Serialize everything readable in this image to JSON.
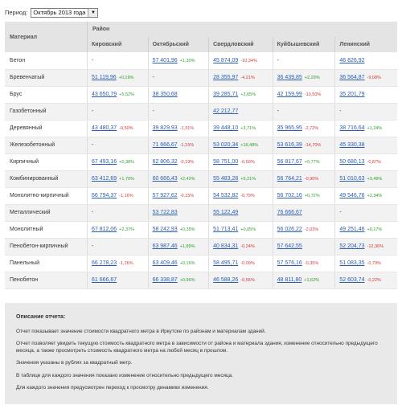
{
  "period": {
    "label": "Период:",
    "selected": "Октябрь 2013 года"
  },
  "table": {
    "material_header": "Материал",
    "district_header": "Район",
    "districts": [
      "Кировский",
      "Октябрьский",
      "Свердловский",
      "Куйбышевский",
      "Ленинский"
    ],
    "rows": [
      {
        "material": "Бетон",
        "cells": [
          {
            "value": "-",
            "change": ""
          },
          {
            "value": "57 401,96",
            "change": "+1,30%"
          },
          {
            "value": "45 874,09",
            "change": "-10,34%"
          },
          {
            "value": "-",
            "change": ""
          },
          {
            "value": "46 826,92",
            "change": ""
          }
        ]
      },
      {
        "material": "Бревенчатый",
        "cells": [
          {
            "value": "51 119,96",
            "change": "+0,19%"
          },
          {
            "value": "-",
            "change": ""
          },
          {
            "value": "28 355,97",
            "change": "-4,21%"
          },
          {
            "value": "36 439,85",
            "change": "+2,29%"
          },
          {
            "value": "36 564,87",
            "change": "-9,08%"
          }
        ]
      },
      {
        "material": "Брус",
        "cells": [
          {
            "value": "43 650,79",
            "change": "+5,52%"
          },
          {
            "value": "38 350,68",
            "change": ""
          },
          {
            "value": "39 285,71",
            "change": "+3,65%"
          },
          {
            "value": "42 159,99",
            "change": "-10,50%"
          },
          {
            "value": "35 201,79",
            "change": ""
          }
        ]
      },
      {
        "material": "Газобетонный",
        "cells": [
          {
            "value": "-",
            "change": ""
          },
          {
            "value": "-",
            "change": ""
          },
          {
            "value": "42 212,77",
            "change": ""
          },
          {
            "value": "-",
            "change": ""
          },
          {
            "value": "-",
            "change": ""
          }
        ]
      },
      {
        "material": "Деревянный",
        "cells": [
          {
            "value": "43 480,37",
            "change": "-0,50%"
          },
          {
            "value": "39 829,93",
            "change": "-1,31%"
          },
          {
            "value": "39 448,10",
            "change": "+3,71%"
          },
          {
            "value": "35 965,95",
            "change": "-2,72%"
          },
          {
            "value": "38 716,64",
            "change": "+1,24%"
          }
        ]
      },
      {
        "material": "Железобетонный",
        "cells": [
          {
            "value": "-",
            "change": ""
          },
          {
            "value": "71 666,67",
            "change": "-1,15%"
          },
          {
            "value": "53 020,34",
            "change": "+16,48%"
          },
          {
            "value": "53 616,39",
            "change": "-14,70%"
          },
          {
            "value": "45 330,38",
            "change": ""
          }
        ]
      },
      {
        "material": "Кирпичный",
        "cells": [
          {
            "value": "67 493,16",
            "change": "+0,38%"
          },
          {
            "value": "62 806,32",
            "change": "-0,19%"
          },
          {
            "value": "58 751,00",
            "change": "-0,50%"
          },
          {
            "value": "56 817,67",
            "change": "+0,77%"
          },
          {
            "value": "50 680,13",
            "change": "-0,87%"
          }
        ]
      },
      {
        "material": "Комбинированный",
        "cells": [
          {
            "value": "63 412,69",
            "change": "+1,70%"
          },
          {
            "value": "60 666,43",
            "change": "+2,42%"
          },
          {
            "value": "55 483,28",
            "change": "+5,21%"
          },
          {
            "value": "56 764,21",
            "change": "-0,90%"
          },
          {
            "value": "51 010,63",
            "change": "+3,49%"
          }
        ]
      },
      {
        "material": "Монолитно-кирпичный",
        "cells": [
          {
            "value": "66 794,37",
            "change": "-1,16%"
          },
          {
            "value": "57 927,62",
            "change": "-0,15%"
          },
          {
            "value": "54 532,82",
            "change": "-0,79%"
          },
          {
            "value": "56 702,16",
            "change": "+0,72%"
          },
          {
            "value": "49 546,76",
            "change": "+2,34%"
          }
        ]
      },
      {
        "material": "Металлический",
        "cells": [
          {
            "value": "-",
            "change": ""
          },
          {
            "value": "53 722,83",
            "change": ""
          },
          {
            "value": "55 122,49",
            "change": ""
          },
          {
            "value": "76 666,67",
            "change": ""
          },
          {
            "value": "-",
            "change": ""
          }
        ]
      },
      {
        "material": "Монолитный",
        "cells": [
          {
            "value": "67 812,06",
            "change": "+2,37%"
          },
          {
            "value": "58 242,93",
            "change": "+0,35%"
          },
          {
            "value": "51 713,41",
            "change": "+0,05%"
          },
          {
            "value": "56 026,22",
            "change": "-2,03%"
          },
          {
            "value": "49 251,46",
            "change": "+0,17%"
          }
        ]
      },
      {
        "material": "Пенобетон-кирпичный",
        "cells": [
          {
            "value": "-",
            "change": ""
          },
          {
            "value": "63 987,46",
            "change": "+1,89%"
          },
          {
            "value": "40 834,31",
            "change": "-0,24%"
          },
          {
            "value": "57 642,55",
            "change": ""
          },
          {
            "value": "52 204,73",
            "change": "-12,36%"
          }
        ]
      },
      {
        "material": "Панельный",
        "cells": [
          {
            "value": "66 278,23",
            "change": "-1,26%"
          },
          {
            "value": "63 409,46",
            "change": "+0,16%"
          },
          {
            "value": "58 495,71",
            "change": "-0,09%"
          },
          {
            "value": "57 576,16",
            "change": "-0,35%"
          },
          {
            "value": "51 083,35",
            "change": "-0,79%"
          }
        ]
      },
      {
        "material": "Пенобетон",
        "cells": [
          {
            "value": "61 666,67",
            "change": ""
          },
          {
            "value": "66 338,87",
            "change": "+0,96%"
          },
          {
            "value": "46 588,26",
            "change": "-0,55%"
          },
          {
            "value": "48 811,80",
            "change": "+1,62%"
          },
          {
            "value": "52 603,74",
            "change": "-0,22%"
          }
        ]
      }
    ]
  },
  "description": {
    "title": "Описание отчета:",
    "paragraphs": [
      "Отчет показывает значение стоимости квадратного метра в Иркутске по районам и материалам зданий.",
      "Отчет позволяет увидеть текущую стоимость квадратного метра в зависимости от района и материала здания, изменение относительно предыдущего месяца, а также просмотреть стоимость квадратного метра на любой месяц в прошлом.",
      "Значения указаны в рублях за квадратный метр.",
      "В таблице для каждого значения показано изменение относительно предыдущего месяца.",
      "Для каждого значения предусмотрен переход к просмотру динамики изменения."
    ]
  },
  "colors": {
    "link": "#2a5db0",
    "up": "#2e9e2e",
    "down": "#d23a3a",
    "header_bg": "#e4e4e4"
  }
}
